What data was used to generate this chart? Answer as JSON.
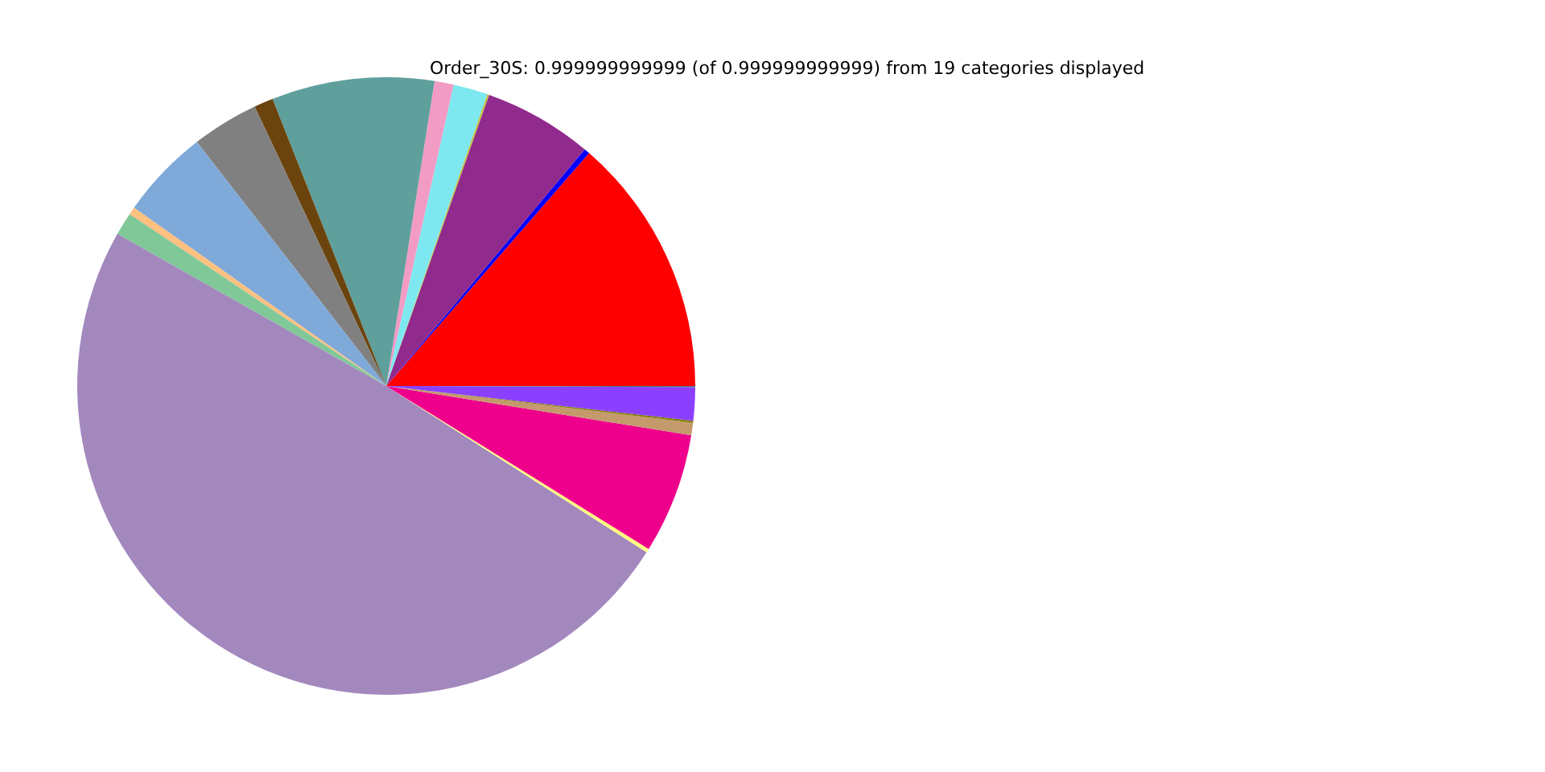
{
  "chart_data": {
    "type": "pie",
    "title": "Order_30S: 0.999999999999 (of 0.999999999999) from 19 categories displayed",
    "categories": [
      null,
      null,
      null,
      null,
      null,
      null,
      null,
      null,
      null,
      null,
      null,
      null,
      null,
      null,
      null,
      null,
      null,
      null,
      null
    ],
    "values": [
      13.6,
      0.3,
      5.7,
      0.1,
      1.8,
      1.0,
      8.5,
      1.0,
      3.5,
      4.7,
      0.4,
      1.2,
      49.15,
      0.2,
      6.3,
      0.65,
      0.1,
      1.75,
      0.05
    ],
    "colors": [
      "#ff0000",
      "#0000ff",
      "#912a8d",
      "#c0c040",
      "#7ee8f0",
      "#f29bc4",
      "#5f9f9c",
      "#6b440d",
      "#808080",
      "#7fa9d8",
      "#ffc080",
      "#80c898",
      "#a388be",
      "#ffff80",
      "#ee008c",
      "#c49a6c",
      "#808000",
      "#8c40ff",
      "#408080"
    ]
  }
}
